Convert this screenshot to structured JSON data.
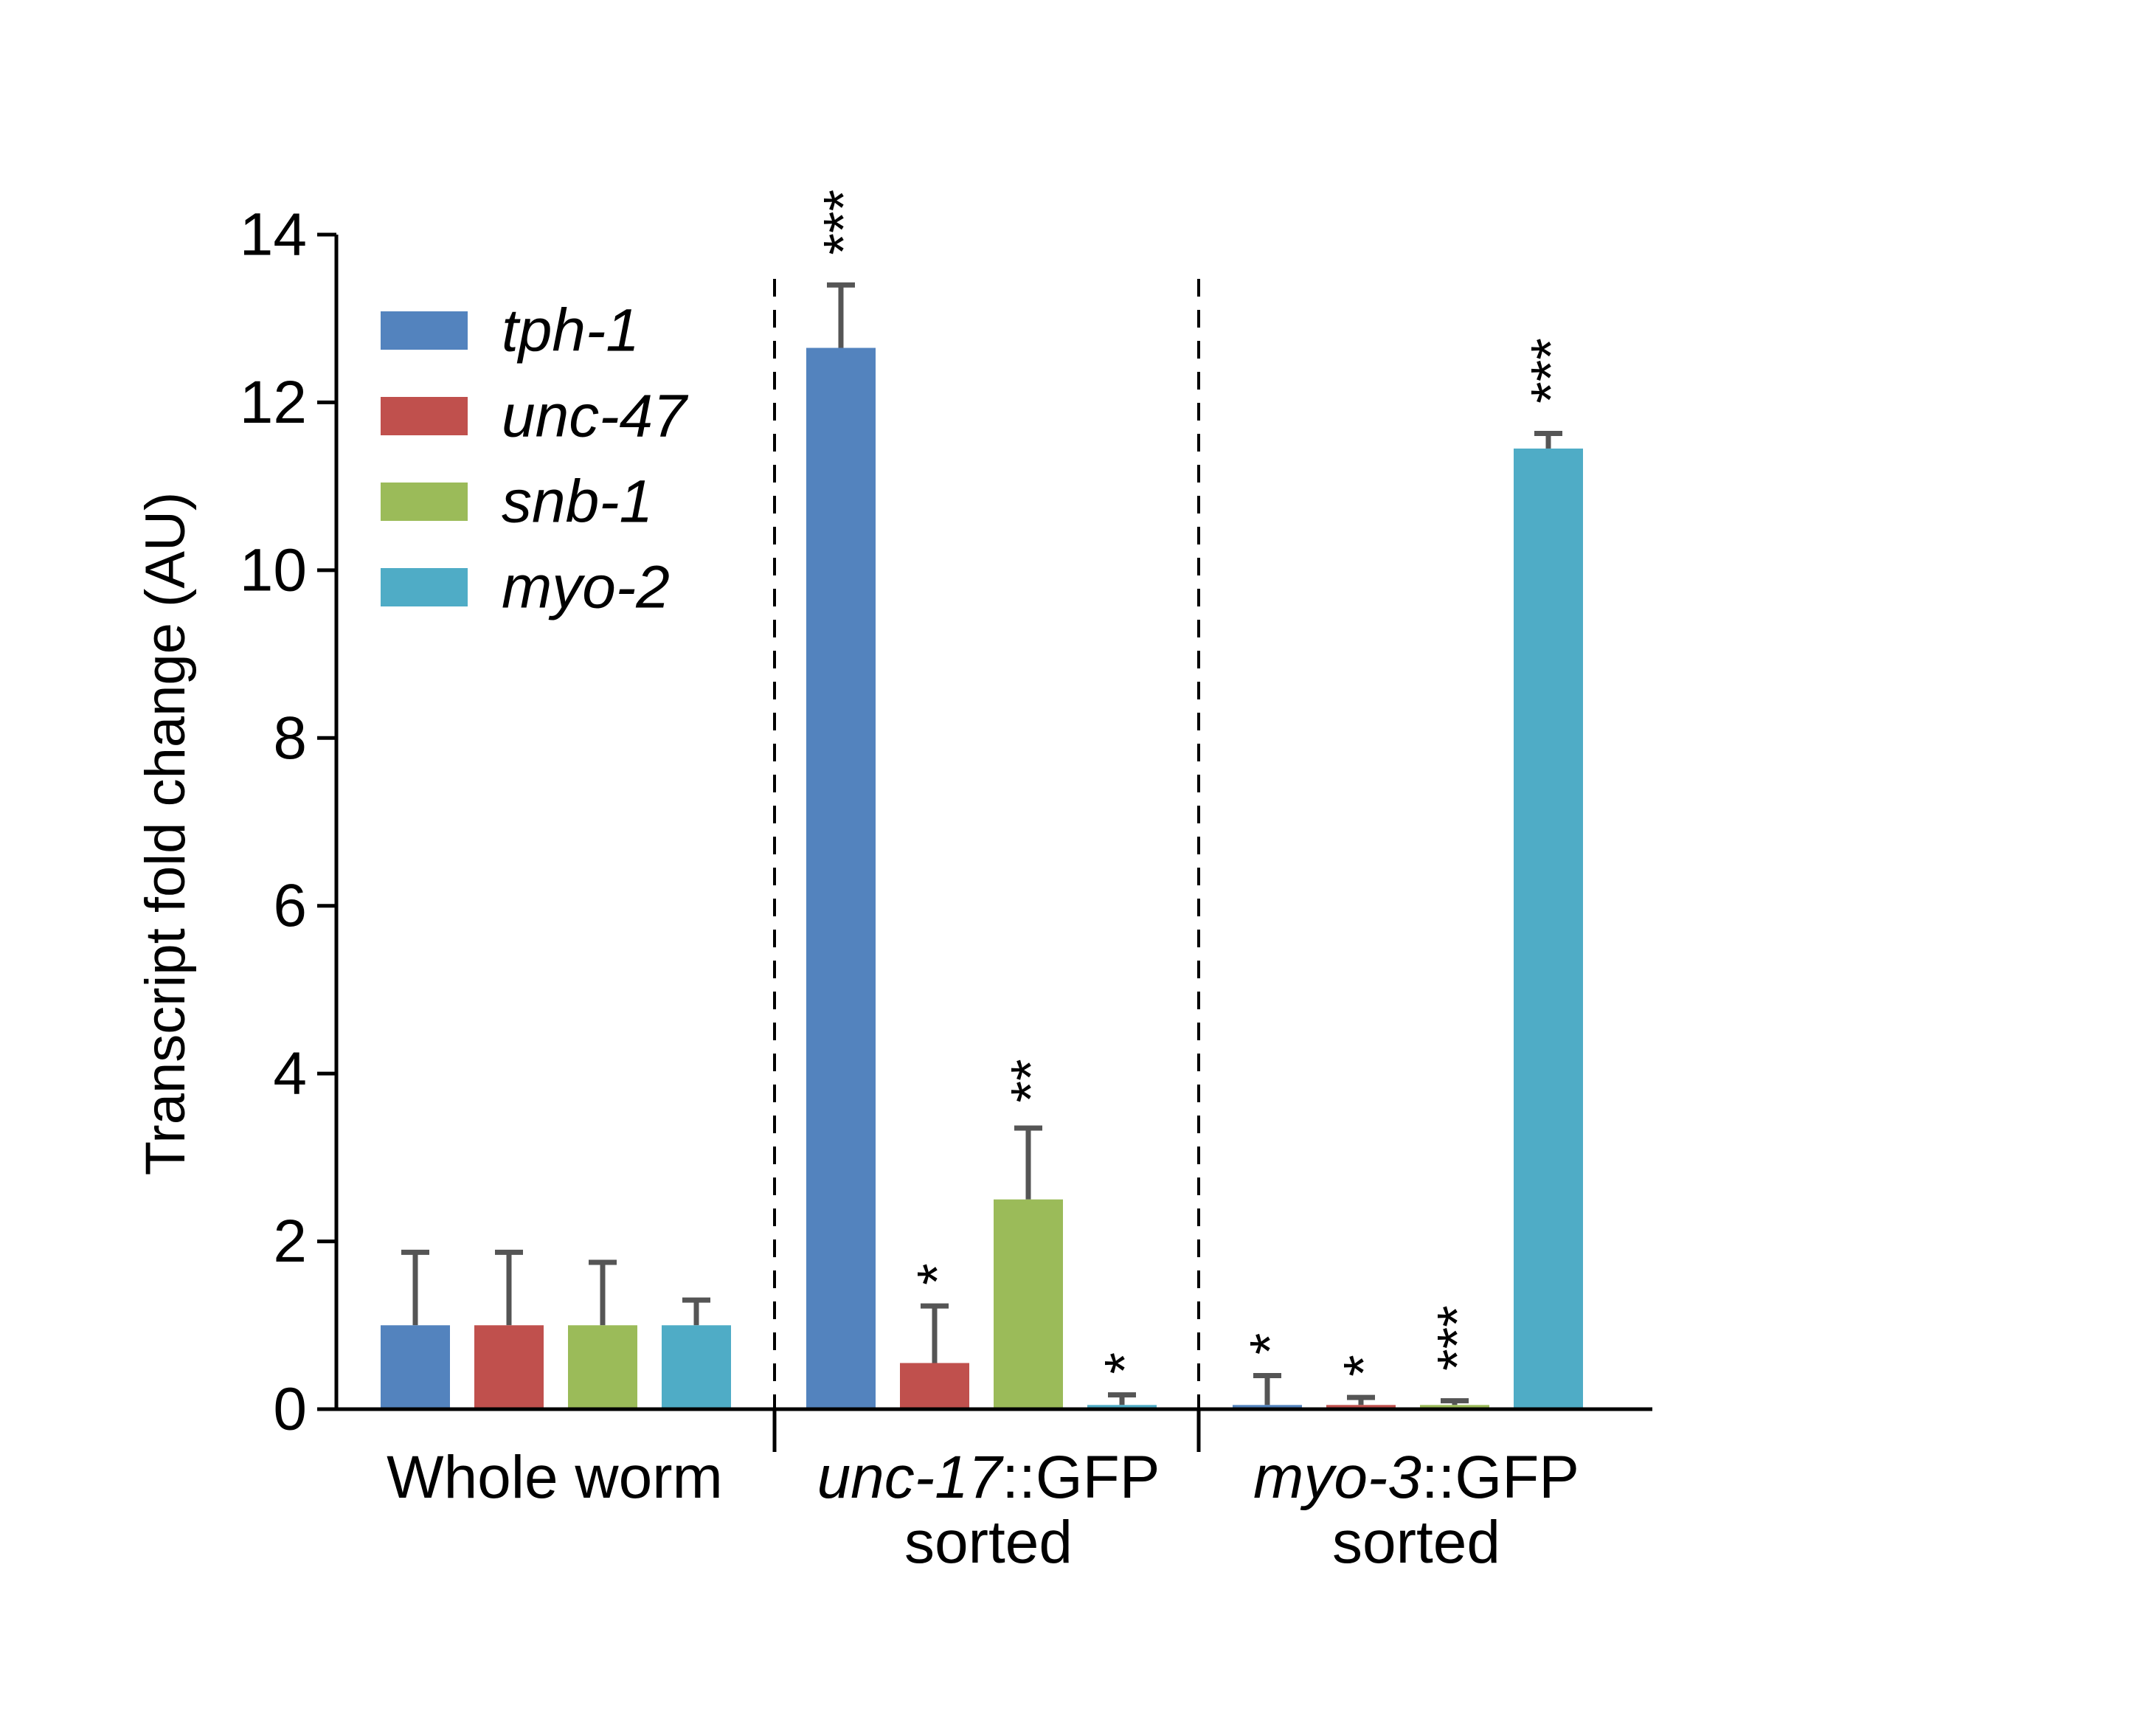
{
  "chart_data": {
    "type": "bar",
    "title": "",
    "xlabel": "",
    "ylabel": "Transcript fold change (AU)",
    "ylim": [
      0,
      14
    ],
    "yticks": [
      "0",
      "2",
      "4",
      "6",
      "8",
      "10",
      "12",
      "14"
    ],
    "grid": false,
    "legend_position": "top-left",
    "groups": [
      {
        "label_parts": [
          {
            "text": "Whole worm",
            "italic": false
          }
        ],
        "label_line2": ""
      },
      {
        "label_parts": [
          {
            "text": "unc-17",
            "italic": true
          },
          {
            "text": "::GFP",
            "italic": false
          }
        ],
        "label_line2": "sorted"
      },
      {
        "label_parts": [
          {
            "text": "myo-3",
            "italic": true
          },
          {
            "text": "::GFP",
            "italic": false
          }
        ],
        "label_line2": "sorted"
      }
    ],
    "series": [
      {
        "name": "tph-1",
        "color": "#5383BE",
        "values": [
          1.0,
          12.65,
          0.05
        ],
        "errors": [
          0.87,
          0.75,
          0.35
        ],
        "significance": [
          "",
          "***",
          "*"
        ]
      },
      {
        "name": "unc-47",
        "color": "#C0504D",
        "values": [
          1.0,
          0.55,
          0.05
        ],
        "errors": [
          0.87,
          0.68,
          0.09
        ],
        "significance": [
          "",
          "*",
          "*"
        ]
      },
      {
        "name": "snb-1",
        "color": "#9BBB59",
        "values": [
          1.0,
          2.5,
          0.05
        ],
        "errors": [
          0.75,
          0.85,
          0.05
        ],
        "significance": [
          "",
          "**",
          "***"
        ]
      },
      {
        "name": "myo-2",
        "color": "#4FACC6",
        "values": [
          1.0,
          0.05,
          11.45
        ],
        "errors": [
          0.3,
          0.12,
          0.18
        ],
        "significance": [
          "",
          "*",
          "***"
        ]
      }
    ]
  }
}
